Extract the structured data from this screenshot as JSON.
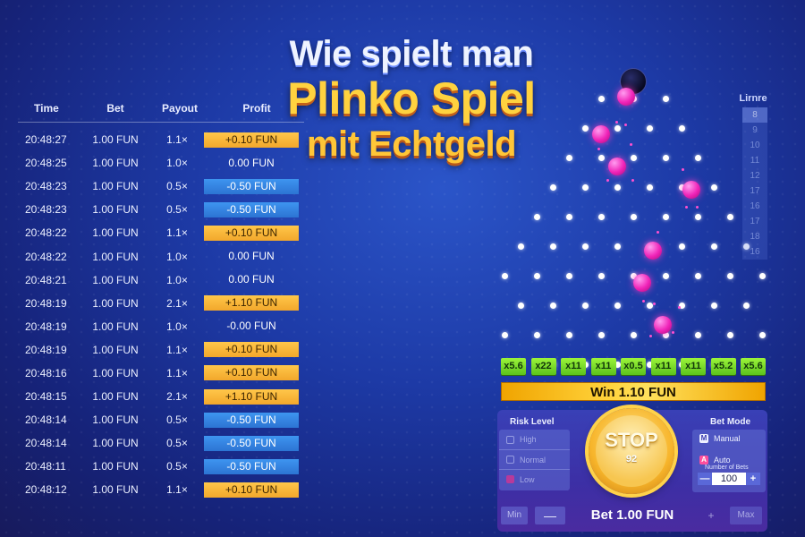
{
  "title": {
    "line1": "Wie spielt man",
    "line2": "Plinko Spiel",
    "line3": "mit Echtgeld"
  },
  "history": {
    "headers": {
      "time": "Time",
      "bet": "Bet",
      "payout": "Payout",
      "profit": "Profit"
    },
    "rows": [
      {
        "time": "20:48:27",
        "bet": "1.00 FUN",
        "payout": "1.1×",
        "profit": "+0.10 FUN",
        "kind": "pos"
      },
      {
        "time": "20:48:25",
        "bet": "1.00 FUN",
        "payout": "1.0×",
        "profit": "0.00 FUN",
        "kind": "zero"
      },
      {
        "time": "20:48:23",
        "bet": "1.00 FUN",
        "payout": "0.5×",
        "profit": "-0.50 FUN",
        "kind": "neg"
      },
      {
        "time": "20:48:23",
        "bet": "1.00 FUN",
        "payout": "0.5×",
        "profit": "-0.50 FUN",
        "kind": "neg"
      },
      {
        "time": "20:48:22",
        "bet": "1.00 FUN",
        "payout": "1.1×",
        "profit": "+0.10 FUN",
        "kind": "pos"
      },
      {
        "time": "20:48:22",
        "bet": "1.00 FUN",
        "payout": "1.0×",
        "profit": "0.00 FUN",
        "kind": "zero"
      },
      {
        "time": "20:48:21",
        "bet": "1.00 FUN",
        "payout": "1.0×",
        "profit": "0.00 FUN",
        "kind": "zero"
      },
      {
        "time": "20:48:19",
        "bet": "1.00 FUN",
        "payout": "2.1×",
        "profit": "+1.10 FUN",
        "kind": "pos"
      },
      {
        "time": "20:48:19",
        "bet": "1.00 FUN",
        "payout": "1.0×",
        "profit": "-0.00 FUN",
        "kind": "zero"
      },
      {
        "time": "20:48:19",
        "bet": "1.00 FUN",
        "payout": "1.1×",
        "profit": "+0.10 FUN",
        "kind": "pos"
      },
      {
        "time": "20:48:16",
        "bet": "1.00 FUN",
        "payout": "1.1×",
        "profit": "+0.10 FUN",
        "kind": "pos"
      },
      {
        "time": "20:48:15",
        "bet": "1.00 FUN",
        "payout": "2.1×",
        "profit": "+1.10 FUN",
        "kind": "pos"
      },
      {
        "time": "20:48:14",
        "bet": "1.00 FUN",
        "payout": "0.5×",
        "profit": "-0.50 FUN",
        "kind": "neg"
      },
      {
        "time": "20:48:14",
        "bet": "1.00 FUN",
        "payout": "0.5×",
        "profit": "-0.50 FUN",
        "kind": "neg"
      },
      {
        "time": "20:48:11",
        "bet": "1.00 FUN",
        "payout": "0.5×",
        "profit": "-0.50 FUN",
        "kind": "neg"
      },
      {
        "time": "20:48:12",
        "bet": "1.00 FUN",
        "payout": "1.1×",
        "profit": "+0.10 FUN",
        "kind": "pos"
      }
    ]
  },
  "side": {
    "title": "Lirnre",
    "items": [
      "8",
      "9",
      "10",
      "11",
      "12",
      "17",
      "16",
      "17",
      "18",
      "16"
    ]
  },
  "multipliers": [
    "x5.6",
    "x22",
    "x11",
    "x11",
    "x0.5",
    "x11",
    "x11",
    "x5.2",
    "x5.6"
  ],
  "win": {
    "text": "Win 1.10 FUN"
  },
  "controls": {
    "risk_title": "Risk Level",
    "risk_options": [
      "High",
      "Normal",
      "Low"
    ],
    "stop_label": "STOP",
    "stop_count": "92",
    "mode_title": "Bet Mode",
    "mode_manual": "Manual",
    "mode_manual_icon": "M",
    "mode_auto": "Auto",
    "mode_auto_icon": "A",
    "number_label": "Number of Bets",
    "number_value": "100",
    "stepper_minus": "—",
    "stepper_plus": "+",
    "bet_min": "Min",
    "bet_minus": "—",
    "bet_label": "Bet 1.00 FUN",
    "bet_plus": "+",
    "bet_max": "Max"
  },
  "colors": {
    "profit_positive": "#f7b838",
    "profit_negative": "#3485e0",
    "multiplier": "#7ed82b",
    "ball": "#f023b8",
    "title_yellow": "#ffd23f"
  }
}
